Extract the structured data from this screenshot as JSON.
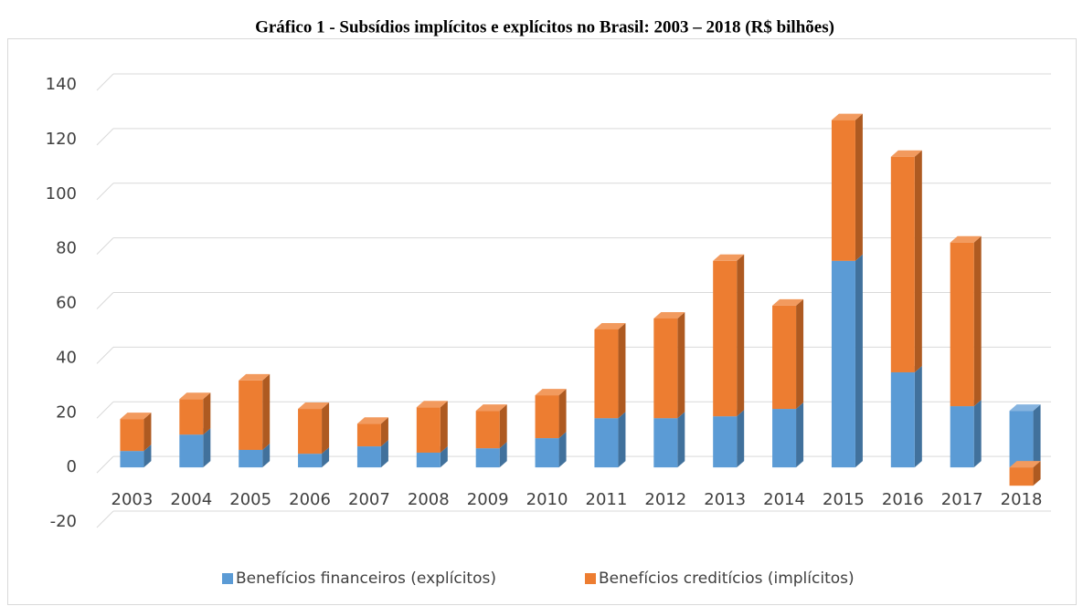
{
  "chart_data": {
    "type": "bar3d_stacked",
    "title": "Gráfico 1 - Subsídios implícitos e explícitos no Brasil: 2003 – 2018 (R$ bilhões)",
    "categories": [
      "2003",
      "2004",
      "2005",
      "2006",
      "2007",
      "2008",
      "2009",
      "2010",
      "2011",
      "2012",
      "2013",
      "2014",
      "2015",
      "2016",
      "2017",
      "2018"
    ],
    "series": [
      {
        "name": "Benefícios financeiros (explícitos)",
        "color": "#5b9bd5",
        "side": "#41719c",
        "top": "#86b4e0",
        "values": [
          6,
          12,
          6.4,
          5,
          7.7,
          5.4,
          7,
          10.7,
          18,
          18,
          18.7,
          21.4,
          75.6,
          34.8,
          22.4,
          20.7
        ]
      },
      {
        "name": "Benefícios creditícios (implícitos)",
        "color": "#ed7d31",
        "side": "#ae5a21",
        "top": "#f29a5e",
        "values": [
          11.7,
          13,
          25.4,
          16.4,
          8.3,
          16.6,
          13.7,
          15.7,
          32.5,
          36.5,
          56.9,
          37.8,
          51.5,
          78.9,
          59.9,
          -6.7
        ]
      }
    ],
    "ylim": [
      -20,
      140
    ],
    "yticks": [
      -20,
      0,
      20,
      40,
      60,
      80,
      100,
      120,
      140
    ],
    "grid": true,
    "legend": "bottom"
  }
}
